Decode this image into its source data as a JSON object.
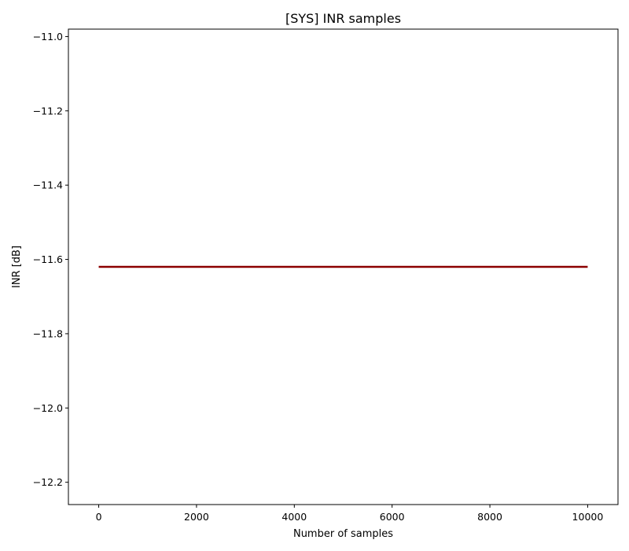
{
  "chart_data": {
    "type": "line",
    "title": "[SYS] INR samples",
    "xlabel": "Number of samples",
    "ylabel": "INR [dB]",
    "xlim": [
      -620,
      10620
    ],
    "ylim": [
      -12.26,
      -10.98
    ],
    "x_ticks": [
      0,
      2000,
      4000,
      6000,
      8000,
      10000
    ],
    "x_tick_labels": [
      "0",
      "2000",
      "4000",
      "6000",
      "8000",
      "10000"
    ],
    "y_ticks": [
      -11.0,
      -11.2,
      -11.4,
      -11.6,
      -11.8,
      -12.0,
      -12.2
    ],
    "y_tick_labels": [
      "−11.0",
      "−11.2",
      "−11.4",
      "−11.6",
      "−11.8",
      "−12.0",
      "−12.2"
    ],
    "grid": false,
    "series": [
      {
        "color": "#8b0000",
        "x": [
          0,
          10000
        ],
        "y": [
          -11.62,
          -11.62
        ]
      }
    ]
  }
}
